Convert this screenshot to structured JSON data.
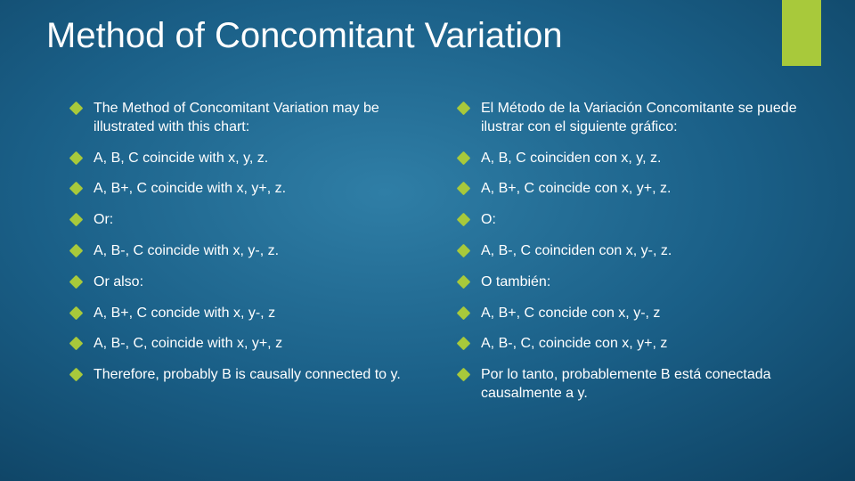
{
  "title": "Method of Concomitant Variation",
  "accent_color": "#a8c93b",
  "background": {
    "gradient_center": "#2f7ea6",
    "gradient_edge": "#082c45"
  },
  "text_color": "#ffffff",
  "title_fontsize": 40,
  "body_fontsize": 16,
  "left_column": [
    "The Method of Concomitant Variation may be illustrated with this chart:",
    "A, B, C coincide with x, y, z.",
    "A, B+, C coincide with x, y+, z.",
    "Or:",
    "A, B-, C coincide with x, y-, z.",
    "Or also:",
    "A, B+, C concide with x, y-, z",
    "A, B-, C, coincide with x, y+, z",
    "Therefore, probably B is causally connected to y."
  ],
  "right_column": [
    "El Método de la Variación Concomitante se puede ilustrar con el siguiente gráfico:",
    "A, B, C coinciden con x, y, z.",
    "A, B+, C coincide con x, y+, z.",
    "O:",
    "A, B-, C coinciden con x, y-, z.",
    "O también:",
    "A, B+, C concide con x, y-, z",
    "A, B-, C, coincide con x, y+, z",
    "Por lo tanto, probablemente B está conectada causalmente a y."
  ]
}
